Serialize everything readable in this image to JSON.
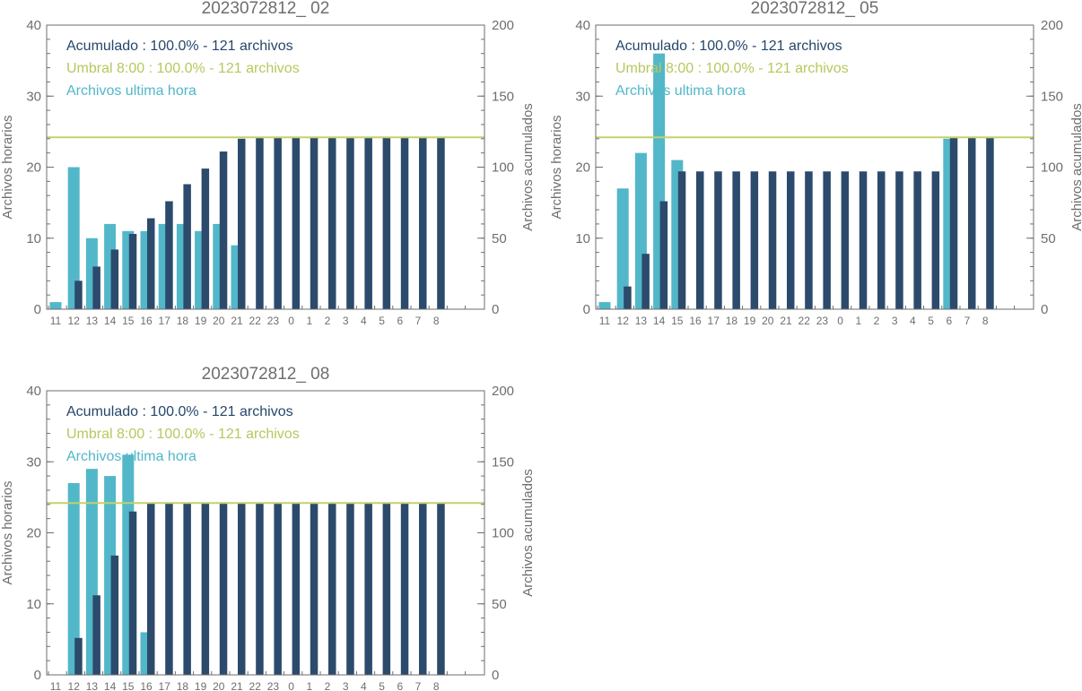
{
  "colors": {
    "hourly": "#52b7c9",
    "cumulative": "#2c4a6b",
    "threshold": "#c3d16a",
    "axis": "#6e6e6e",
    "legend_acumulado": "#26476b",
    "legend_umbral": "#b8c75e",
    "legend_hourly": "#52b7c9"
  },
  "chart_data": [
    {
      "type": "bar",
      "title": "2023072812_ 02",
      "ylabel_left": "Archivos horarios",
      "ylabel_right": "Archivos acumulados",
      "ylim_left": [
        0,
        40
      ],
      "ylim_right": [
        0,
        200
      ],
      "yticks_left": [
        "0",
        "10",
        "20",
        "30",
        "40"
      ],
      "yticks_right": [
        "0",
        "50",
        "100",
        "150",
        "200"
      ],
      "categories": [
        "11",
        "12",
        "13",
        "14",
        "15",
        "16",
        "17",
        "18",
        "19",
        "20",
        "21",
        "22",
        "23",
        "0",
        "1",
        "2",
        "3",
        "4",
        "5",
        "6",
        "7",
        "8"
      ],
      "legend": [
        "Acumulado : 100.0% - 121 archivos",
        "Umbral 8:00 : 100.0% - 121 archivos",
        "Archivos ultima hora"
      ],
      "series": [
        {
          "name": "Archivos ultima hora",
          "values": [
            1,
            20,
            10,
            12,
            11,
            11,
            12,
            12,
            11,
            12,
            9,
            0,
            0,
            0,
            0,
            0,
            0,
            0,
            0,
            0,
            0,
            0
          ]
        },
        {
          "name": "Acumulado",
          "values": [
            0,
            20,
            30,
            42,
            53,
            64,
            76,
            88,
            99,
            111,
            120,
            121,
            121,
            121,
            121,
            121,
            121,
            121,
            121,
            121,
            121,
            121
          ]
        }
      ],
      "threshold": 121
    },
    {
      "type": "bar",
      "title": "2023072812_ 05",
      "ylabel_left": "Archivos horarios",
      "ylabel_right": "Archivos acumulados",
      "ylim_left": [
        0,
        40
      ],
      "ylim_right": [
        0,
        200
      ],
      "yticks_left": [
        "0",
        "10",
        "20",
        "30",
        "40"
      ],
      "yticks_right": [
        "0",
        "50",
        "100",
        "150",
        "200"
      ],
      "categories": [
        "11",
        "12",
        "13",
        "14",
        "15",
        "16",
        "17",
        "18",
        "19",
        "20",
        "21",
        "22",
        "23",
        "0",
        "1",
        "2",
        "3",
        "4",
        "5",
        "6",
        "7",
        "8"
      ],
      "legend": [
        "Acumulado : 100.0% - 121 archivos",
        "Umbral 8:00 : 100.0% - 121 archivos",
        "Archivos ultima hora"
      ],
      "series": [
        {
          "name": "Archivos ultima hora",
          "values": [
            1,
            17,
            22,
            36,
            21,
            0,
            0,
            0,
            0,
            0,
            0,
            0,
            0,
            0,
            0,
            0,
            0,
            0,
            0,
            24,
            0,
            0
          ]
        },
        {
          "name": "Acumulado",
          "values": [
            0,
            16,
            39,
            76,
            97,
            97,
            97,
            97,
            97,
            97,
            97,
            97,
            97,
            97,
            97,
            97,
            97,
            97,
            97,
            121,
            121,
            121
          ]
        }
      ],
      "threshold": 121
    },
    {
      "type": "bar",
      "title": "2023072812_ 08",
      "ylabel_left": "Archivos horarios",
      "ylabel_right": "Archivos acumulados",
      "ylim_left": [
        0,
        40
      ],
      "ylim_right": [
        0,
        200
      ],
      "yticks_left": [
        "0",
        "10",
        "20",
        "30",
        "40"
      ],
      "yticks_right": [
        "0",
        "50",
        "100",
        "150",
        "200"
      ],
      "categories": [
        "11",
        "12",
        "13",
        "14",
        "15",
        "16",
        "17",
        "18",
        "19",
        "20",
        "21",
        "22",
        "23",
        "0",
        "1",
        "2",
        "3",
        "4",
        "5",
        "6",
        "7",
        "8"
      ],
      "legend": [
        "Acumulado : 100.0% - 121 archivos",
        "Umbral 8:00 : 100.0% - 121 archivos",
        "Archivos ultima hora"
      ],
      "series": [
        {
          "name": "Archivos ultima hora",
          "values": [
            0,
            27,
            29,
            28,
            31,
            6,
            0,
            0,
            0,
            0,
            0,
            0,
            0,
            0,
            0,
            0,
            0,
            0,
            0,
            0,
            0,
            0
          ]
        },
        {
          "name": "Acumulado",
          "values": [
            0,
            26,
            56,
            84,
            115,
            121,
            121,
            121,
            121,
            121,
            121,
            121,
            121,
            121,
            121,
            121,
            121,
            121,
            121,
            121,
            121,
            121
          ]
        }
      ],
      "threshold": 121
    }
  ]
}
